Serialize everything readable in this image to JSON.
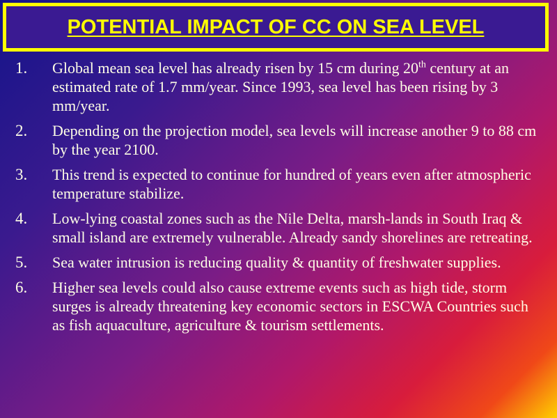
{
  "header": {
    "title": "POTENTIAL IMPACT OF CC ON SEA LEVEL"
  },
  "items": [
    {
      "number": "1.",
      "text": "Global mean sea level has already risen by 15 cm during 20",
      "superscript": "th",
      "text_after": " century at an estimated rate of 1.7 mm/year. Since 1993, sea level has been rising by 3 mm/year."
    },
    {
      "number": "2.",
      "text": "Depending on the projection model, sea levels will increase another 9 to 88 cm by the year 2100."
    },
    {
      "number": "3.",
      "text": "This trend is expected to continue for hundred of years even after atmospheric temperature stabilize."
    },
    {
      "number": "4.",
      "text": "Low-lying coastal zones such as the Nile Delta, marsh-lands in South Iraq & small island are extremely vulnerable. Already sandy shorelines are retreating."
    },
    {
      "number": "5.",
      "text": "Sea water intrusion is reducing quality & quantity of freshwater supplies."
    },
    {
      "number": "6.",
      "text": "Higher sea levels could also cause extreme events such as high tide, storm surges is already threatening key economic sectors in ESCWA Countries such as fish aquaculture, agriculture & tourism settlements."
    }
  ]
}
